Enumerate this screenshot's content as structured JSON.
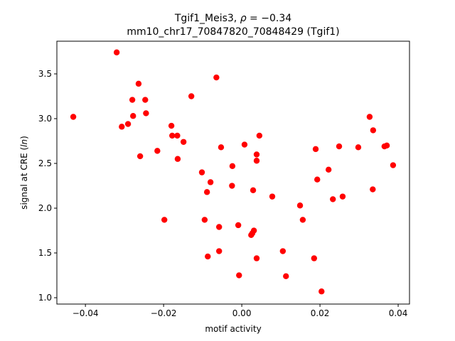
{
  "chart_data": {
    "type": "scatter",
    "title_line1_prefix": "Tgif1_Meis3, ",
    "title_rho_symbol": "ρ",
    "title_rho_value": " = −0.34",
    "title_line2": "mm10_chr17_70847820_70848429 (Tgif1)",
    "xlabel": "motif activity",
    "ylabel_prefix": "signal at CRE (",
    "ylabel_italic": "ln",
    "ylabel_suffix": ")",
    "xlim": [
      -0.0473,
      0.0429
    ],
    "ylim": [
      0.929,
      3.865
    ],
    "xticks": [
      -0.04,
      -0.02,
      0.0,
      0.02,
      0.04
    ],
    "xtick_labels": [
      "−0.04",
      "−0.02",
      "0.00",
      "0.02",
      "0.04"
    ],
    "yticks": [
      1.0,
      1.5,
      2.0,
      2.5,
      3.0,
      3.5
    ],
    "ytick_labels": [
      "1.0",
      "1.5",
      "2.0",
      "2.5",
      "3.0",
      "3.5"
    ],
    "grid": false,
    "marker_color": "#ff0000",
    "points": [
      [
        -0.0431,
        3.02
      ],
      [
        -0.032,
        3.74
      ],
      [
        -0.0307,
        2.91
      ],
      [
        -0.0291,
        2.94
      ],
      [
        -0.028,
        3.21
      ],
      [
        -0.0278,
        3.03
      ],
      [
        -0.0264,
        3.39
      ],
      [
        -0.026,
        2.58
      ],
      [
        -0.0247,
        3.21
      ],
      [
        -0.0245,
        3.06
      ],
      [
        -0.0216,
        2.64
      ],
      [
        -0.0198,
        1.87
      ],
      [
        -0.018,
        2.92
      ],
      [
        -0.0178,
        2.81
      ],
      [
        -0.0165,
        2.81
      ],
      [
        -0.0164,
        2.55
      ],
      [
        -0.0149,
        2.74
      ],
      [
        -0.0129,
        3.25
      ],
      [
        -0.0102,
        2.4
      ],
      [
        -0.0095,
        1.87
      ],
      [
        -0.0089,
        2.18
      ],
      [
        -0.0087,
        1.46
      ],
      [
        -0.008,
        2.29
      ],
      [
        -0.0065,
        3.46
      ],
      [
        -0.0058,
        1.79
      ],
      [
        -0.0058,
        1.52
      ],
      [
        -0.0053,
        2.68
      ],
      [
        -0.0025,
        2.25
      ],
      [
        -0.0024,
        2.47
      ],
      [
        -0.0009,
        1.81
      ],
      [
        -0.0007,
        1.25
      ],
      [
        0.0007,
        2.71
      ],
      [
        0.0024,
        1.7
      ],
      [
        0.0027,
        1.72
      ],
      [
        0.0029,
        2.2
      ],
      [
        0.0031,
        1.75
      ],
      [
        0.0038,
        2.6
      ],
      [
        0.0038,
        2.53
      ],
      [
        0.0038,
        1.44
      ],
      [
        0.0045,
        2.81
      ],
      [
        0.0078,
        2.13
      ],
      [
        0.0105,
        1.52
      ],
      [
        0.0113,
        1.24
      ],
      [
        0.0149,
        2.03
      ],
      [
        0.0156,
        1.87
      ],
      [
        0.0185,
        1.44
      ],
      [
        0.0189,
        2.66
      ],
      [
        0.0193,
        2.32
      ],
      [
        0.0204,
        1.07
      ],
      [
        0.0222,
        2.43
      ],
      [
        0.0233,
        2.1
      ],
      [
        0.0249,
        2.69
      ],
      [
        0.0258,
        2.13
      ],
      [
        0.0298,
        2.68
      ],
      [
        0.0327,
        3.02
      ],
      [
        0.0335,
        2.21
      ],
      [
        0.0336,
        2.87
      ],
      [
        0.0365,
        2.69
      ],
      [
        0.0371,
        2.7
      ],
      [
        0.0387,
        2.48
      ]
    ]
  }
}
